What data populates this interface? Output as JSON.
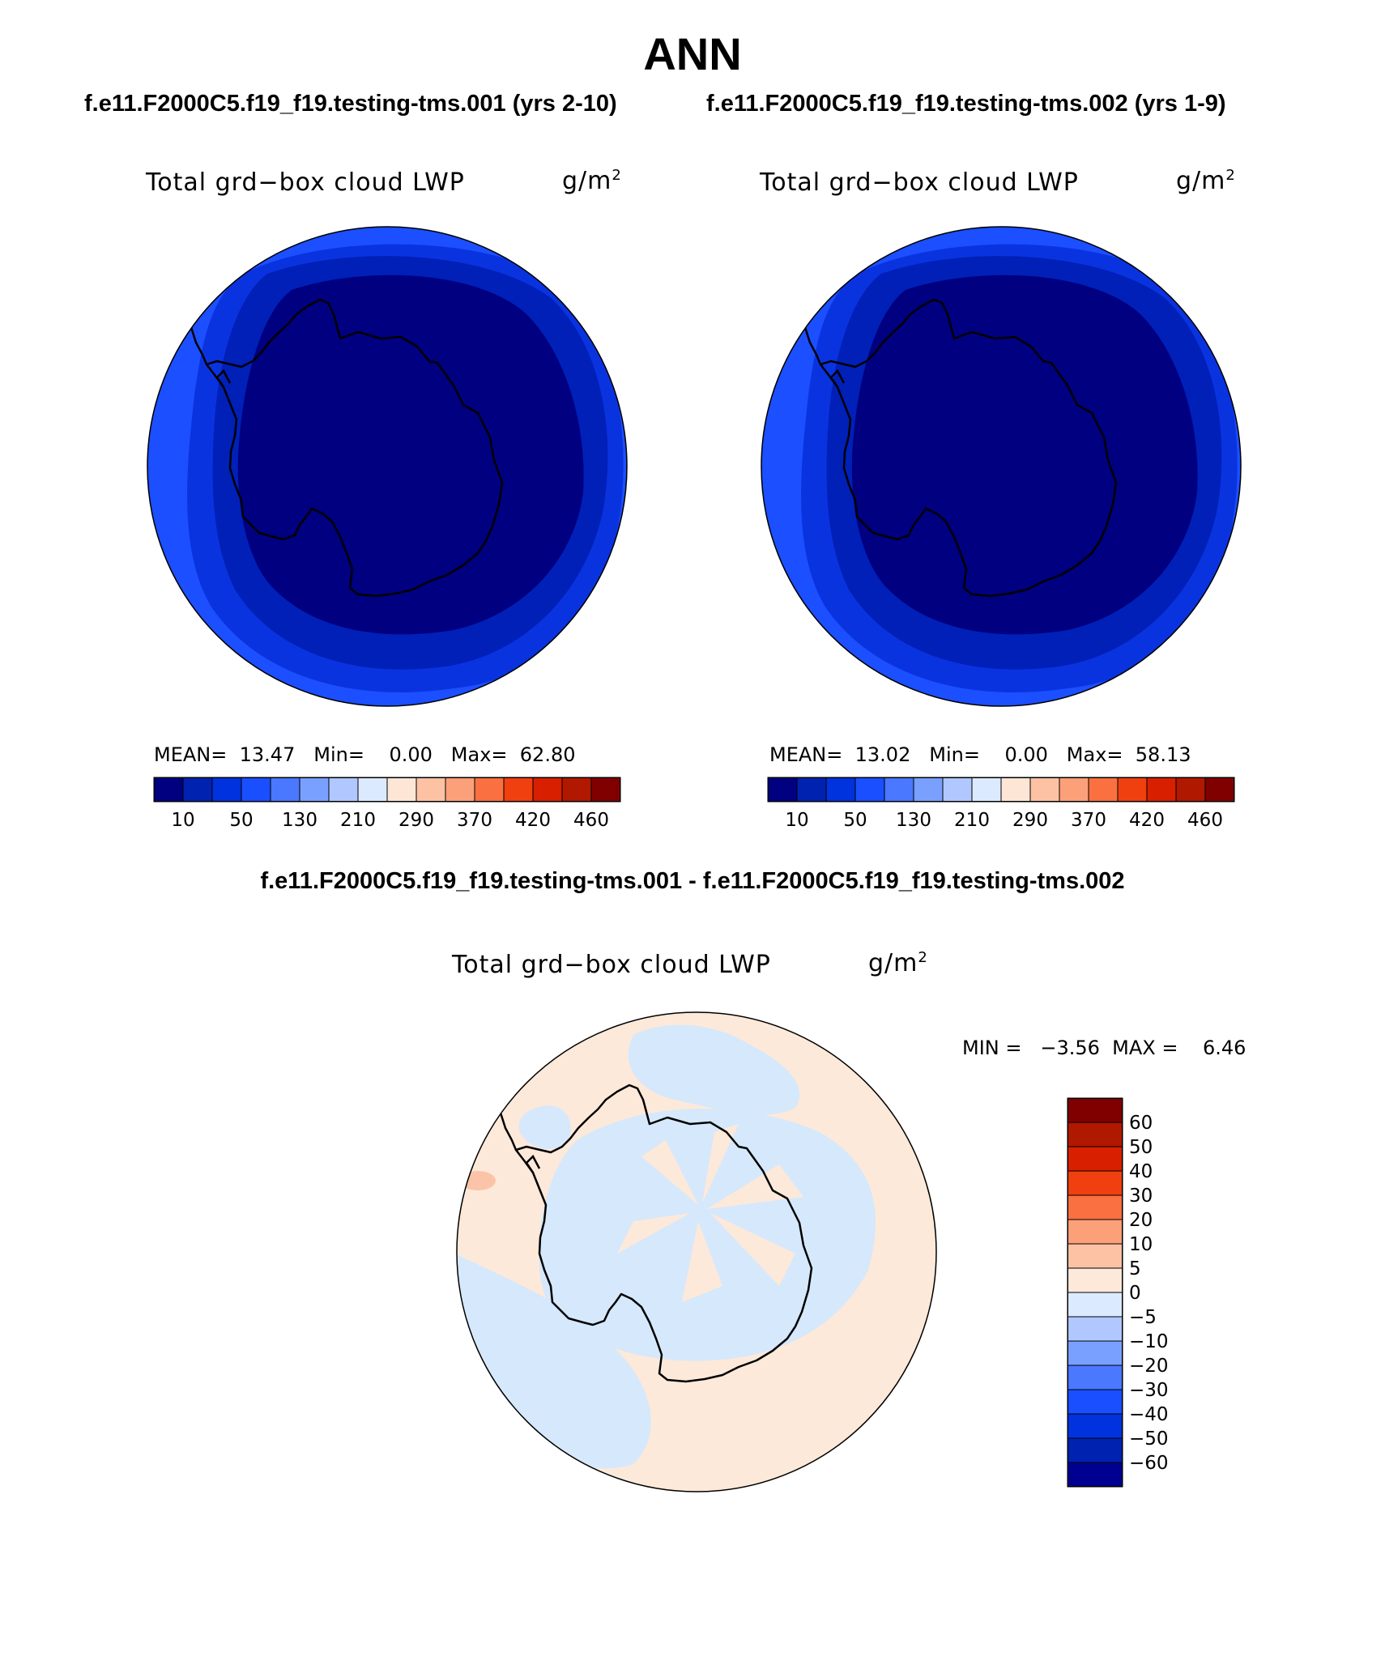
{
  "header": {
    "title": "ANN",
    "case1": "f.e11.F2000C5.f19_f19.testing-tms.001 (yrs 2-10)",
    "case2": "f.e11.F2000C5.f19_f19.testing-tms.002 (yrs 1-9)",
    "diff_title": "f.e11.F2000C5.f19_f19.testing-tms.001 - f.e11.F2000C5.f19_f19.testing-tms.002"
  },
  "panels": [
    {
      "variable": "Total grd−box cloud LWP",
      "units": "g/m",
      "units_exp": "2",
      "mean_label": "MEAN=",
      "mean": "13.47",
      "min_label": "Min=",
      "min": "0.00",
      "max_label": "Max=",
      "max": "62.80"
    },
    {
      "variable": "Total grd−box cloud LWP",
      "units": "g/m",
      "units_exp": "2",
      "mean_label": "MEAN=",
      "mean": "13.02",
      "min_label": "Min=",
      "min": "0.00",
      "max_label": "Max=",
      "max": "58.13"
    }
  ],
  "diff_panel": {
    "variable": "Total grd−box cloud LWP",
    "units": "g/m",
    "units_exp": "2",
    "stats": "MIN =   −3.56  MAX =    6.46"
  },
  "colorbar_top": {
    "colors": [
      "#000080",
      "#0022b0",
      "#0033dd",
      "#1a4fff",
      "#4a78ff",
      "#7aa0ff",
      "#b0c8ff",
      "#dceaff",
      "#fde6d6",
      "#fdc2a4",
      "#fca07a",
      "#fa7040",
      "#f04010",
      "#d82000",
      "#b01800",
      "#800000"
    ],
    "labels": [
      "10",
      "50",
      "130",
      "210",
      "290",
      "370",
      "420",
      "460"
    ]
  },
  "colorbar_diff": {
    "colors": [
      "#800000",
      "#b01800",
      "#d82000",
      "#f04010",
      "#fa7040",
      "#fca07a",
      "#fdc2a4",
      "#fde9d9",
      "#dceaff",
      "#b0c8ff",
      "#7aa0ff",
      "#4a78ff",
      "#1a4fff",
      "#0033dd",
      "#0022b0",
      "#000090"
    ],
    "labels": [
      "60",
      "50",
      "40",
      "30",
      "20",
      "10",
      "5",
      "0",
      "−5",
      "−10",
      "−20",
      "−30",
      "−40",
      "−50",
      "−60"
    ]
  },
  "map_colors": {
    "ring_outer": "#1c4fff",
    "ring_mid": "#0a33e0",
    "ring_inner": "#0020b8",
    "center": "#000080",
    "diff_pos": "#fde9d9",
    "diff_neg": "#d6e8fb",
    "diff_hot": "#fbc4a8"
  }
}
